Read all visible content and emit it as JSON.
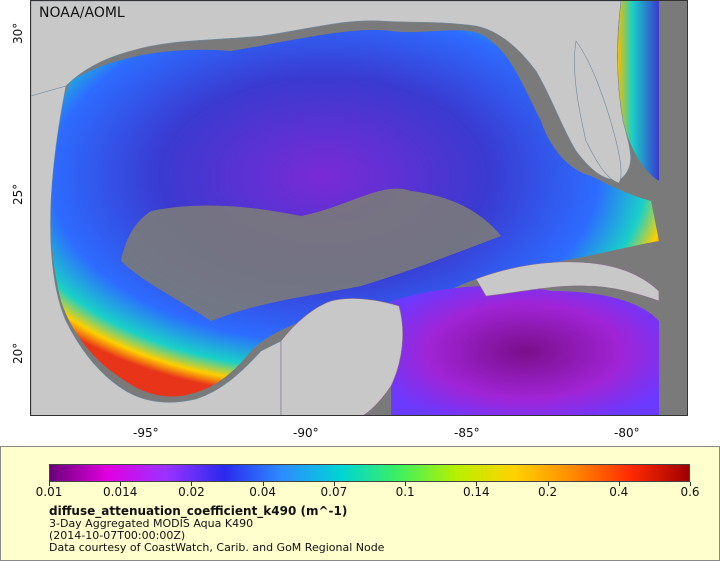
{
  "map": {
    "credit": "NOAA/AOML",
    "lon_labels": [
      "-95°",
      "-90°",
      "-85°",
      "-80°"
    ],
    "lat_labels": [
      "30°",
      "25°",
      "20°"
    ],
    "colors": {
      "land": "#c8c8c8",
      "no_data": "#7a7a7a",
      "deep_ocean": "#3a3acc",
      "coastal_high": "#e8351a"
    }
  },
  "legend": {
    "ticks": [
      "0.01",
      "0.014",
      "0.02",
      "0.04",
      "0.07",
      "0.1",
      "0.14",
      "0.2",
      "0.4",
      "0.6"
    ],
    "variable": "diffuse_attenuation_coefficient_k490 (m^-1)",
    "product": "3-Day Aggregated MODIS Aqua K490",
    "timestamp": "(2014-10-07T00:00:00Z)",
    "courtesy": "Data courtesy of CoastWatch, Carib. and GoM Regional Node",
    "gradient": [
      "#6b007a",
      "#e000e0",
      "#9a33ff",
      "#2a2aee",
      "#2d8cff",
      "#00d4d4",
      "#3cf060",
      "#b8f000",
      "#ffd200",
      "#ff8a00",
      "#ff2a00",
      "#a00000"
    ]
  }
}
